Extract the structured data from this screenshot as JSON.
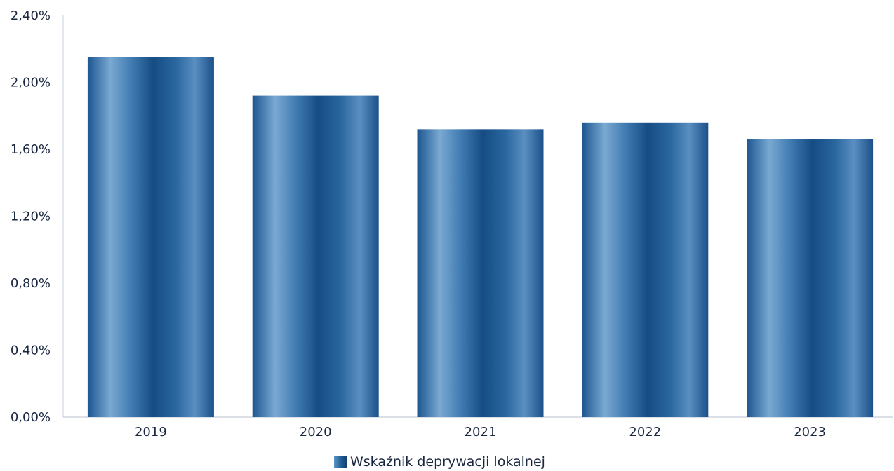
{
  "chart_data": {
    "type": "bar",
    "title": "",
    "xlabel": "",
    "ylabel": "",
    "categories": [
      "2019",
      "2020",
      "2021",
      "2022",
      "2023"
    ],
    "series": [
      {
        "name": "Wskaźnik deprywacji lokalnej",
        "values": [
          2.15,
          1.92,
          1.72,
          1.76,
          1.66
        ]
      }
    ],
    "ylim": [
      0,
      2.4
    ],
    "yticks": [
      "0,00%",
      "0,40%",
      "0,80%",
      "1,20%",
      "1,60%",
      "2,00%",
      "2,40%"
    ],
    "grid": false,
    "legend_position": "bottom-center",
    "colors": {
      "bar_dark": "#123f71",
      "bar_mid": "#1f5f97",
      "bar_light": "#6a9dcb",
      "text": "#1a2740"
    }
  }
}
